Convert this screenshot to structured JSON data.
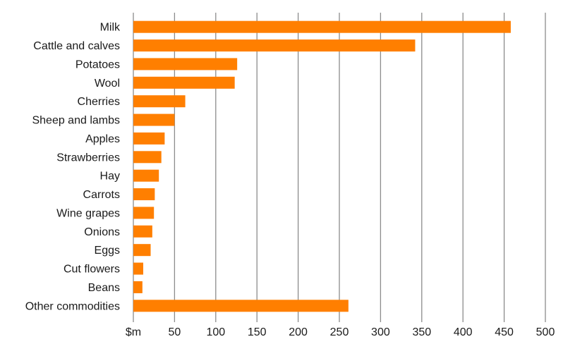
{
  "chart_data": {
    "type": "bar",
    "orientation": "horizontal",
    "categories": [
      "Milk",
      "Cattle and calves",
      "Potatoes",
      "Wool",
      "Cherries",
      "Sheep and lambs",
      "Apples",
      "Strawberries",
      "Hay",
      "Carrots",
      "Wine grapes",
      "Onions",
      "Eggs",
      "Cut flowers",
      "Beans",
      "Other commodities"
    ],
    "values": [
      458,
      342,
      126,
      123,
      63,
      50,
      38,
      34,
      31,
      26,
      25,
      23,
      21,
      12,
      11,
      261
    ],
    "xlim": [
      0,
      500
    ],
    "xticks": [
      0,
      50,
      100,
      150,
      200,
      250,
      300,
      350,
      400,
      450,
      500
    ],
    "xtick_labels": [
      "$m",
      "50",
      "100",
      "150",
      "200",
      "250",
      "300",
      "350",
      "400",
      "450",
      "500"
    ],
    "title": "",
    "xlabel": "",
    "ylabel": "",
    "grid": "vertical",
    "legend": "none",
    "bar_color": "#FF7F00"
  }
}
